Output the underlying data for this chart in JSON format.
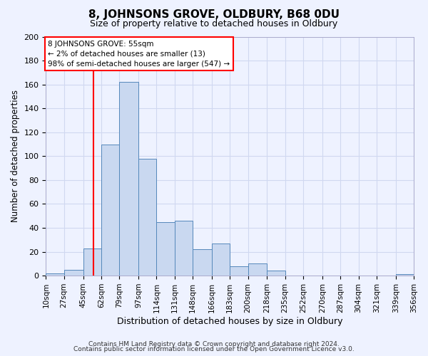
{
  "title": "8, JOHNSONS GROVE, OLDBURY, B68 0DU",
  "subtitle": "Size of property relative to detached houses in Oldbury",
  "xlabel": "Distribution of detached houses by size in Oldbury",
  "ylabel": "Number of detached properties",
  "footer_line1": "Contains HM Land Registry data © Crown copyright and database right 2024.",
  "footer_line2": "Contains public sector information licensed under the Open Government Licence v3.0.",
  "bar_edges": [
    10,
    27,
    45,
    62,
    79,
    97,
    114,
    131,
    148,
    166,
    183,
    200,
    218,
    235,
    252,
    270,
    287,
    304,
    321,
    339,
    356
  ],
  "bar_heights": [
    2,
    5,
    23,
    110,
    162,
    98,
    45,
    46,
    22,
    27,
    8,
    10,
    4,
    0,
    0,
    0,
    0,
    0,
    0,
    1
  ],
  "bar_color": "#c9d8f0",
  "bar_edgecolor": "#5588bb",
  "tick_labels": [
    "10sqm",
    "27sqm",
    "45sqm",
    "62sqm",
    "79sqm",
    "97sqm",
    "114sqm",
    "131sqm",
    "148sqm",
    "166sqm",
    "183sqm",
    "200sqm",
    "218sqm",
    "235sqm",
    "252sqm",
    "270sqm",
    "287sqm",
    "304sqm",
    "321sqm",
    "339sqm",
    "356sqm"
  ],
  "ylim": [
    0,
    200
  ],
  "yticks": [
    0,
    20,
    40,
    60,
    80,
    100,
    120,
    140,
    160,
    180,
    200
  ],
  "vline_x": 55,
  "vline_color": "red",
  "ann_line1": "8 JOHNSONS GROVE: 55sqm",
  "ann_line2": "← 2% of detached houses are smaller (13)",
  "ann_line3": "98% of semi-detached houses are larger (547) →",
  "bg_color": "#eef2ff",
  "grid_color": "#d0d8f0",
  "title_fontsize": 11,
  "subtitle_fontsize": 9,
  "xlabel_fontsize": 9,
  "ylabel_fontsize": 8.5,
  "tick_fontsize": 7.5,
  "footer_fontsize": 6.5
}
